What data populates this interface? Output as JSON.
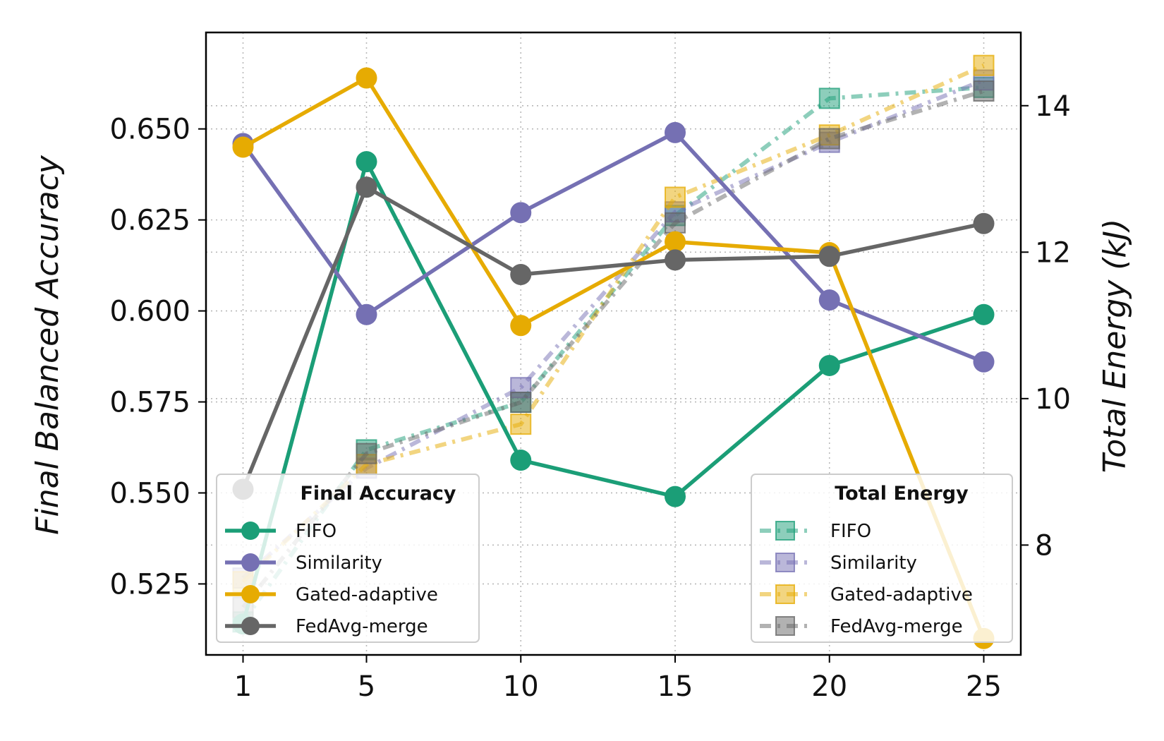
{
  "chart_data": {
    "type": "line",
    "x": [
      1,
      5,
      10,
      15,
      20,
      25
    ],
    "xlabel": "",
    "y_left": {
      "label": "Final Balanced Accuracy",
      "ylim": [
        0.5055,
        0.6765
      ],
      "ticks": [
        0.525,
        0.55,
        0.575,
        0.6,
        0.625,
        0.65
      ],
      "tick_labels": [
        "0.525",
        "0.550",
        "0.575",
        "0.600",
        "0.625",
        "0.650"
      ]
    },
    "y_right": {
      "label": "Total Energy (kJ)",
      "ylim": [
        6.5,
        15.0
      ],
      "ticks": [
        8,
        10,
        12,
        14
      ],
      "tick_labels": [
        "8",
        "10",
        "12",
        "14"
      ]
    },
    "x_ticks": [
      1,
      5,
      10,
      15,
      20,
      25
    ],
    "x_tick_labels": [
      "1",
      "5",
      "10",
      "15",
      "20",
      "25"
    ],
    "grid": true,
    "accuracy_series": [
      {
        "name": "FIFO",
        "color": "#1b9e77",
        "values": [
          0.514,
          0.641,
          0.559,
          0.549,
          0.585,
          0.599
        ]
      },
      {
        "name": "Similarity",
        "color": "#7570b3",
        "values": [
          0.646,
          0.599,
          0.627,
          0.649,
          0.603,
          0.586
        ]
      },
      {
        "name": "Gated-adaptive",
        "color": "#e6ab02",
        "values": [
          0.645,
          0.664,
          0.596,
          0.619,
          0.616,
          0.51
        ]
      },
      {
        "name": "FedAvg-merge",
        "color": "#666666",
        "values": [
          0.551,
          0.634,
          0.61,
          0.614,
          0.615,
          0.624
        ]
      }
    ],
    "energy_series": [
      {
        "name": "FIFO",
        "color": "#1b9e77",
        "values": [
          6.95,
          9.3,
          9.95,
          12.5,
          14.1,
          14.25
        ]
      },
      {
        "name": "Similarity",
        "color": "#7570b3",
        "values": [
          7.55,
          9.05,
          10.15,
          12.55,
          13.5,
          14.35
        ]
      },
      {
        "name": "Gated-adaptive",
        "color": "#e6ab02",
        "values": [
          7.5,
          9.1,
          9.65,
          12.75,
          13.6,
          14.55
        ]
      },
      {
        "name": "FedAvg-merge",
        "color": "#666666",
        "values": [
          7.15,
          9.25,
          9.95,
          12.4,
          13.55,
          14.2
        ]
      }
    ],
    "legends": {
      "accuracy": {
        "title": "Final Accuracy",
        "location": "lower-left"
      },
      "energy": {
        "title": "Total Energy",
        "location": "lower-right"
      }
    }
  }
}
